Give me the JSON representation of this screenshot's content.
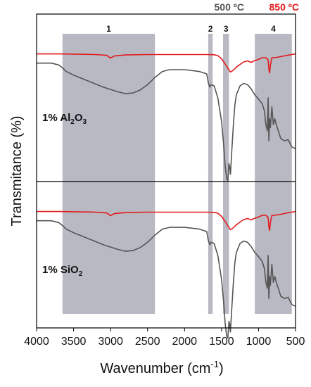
{
  "chart_data": {
    "type": "line",
    "xlabel_main": "Wavenumber (cm",
    "xlabel_sup": "-1",
    "xlabel_end": ")",
    "ylabel": "Transmitance (%)",
    "xlim": [
      4000,
      500
    ],
    "x_reversed": true,
    "xticks": [
      4000,
      3500,
      3000,
      2500,
      2000,
      1500,
      1000,
      500
    ],
    "legend": [
      {
        "label": "500 ºC",
        "color": "#555555"
      },
      {
        "label": "850 ºC",
        "color": "#e31a1c"
      }
    ],
    "legend_position": "top-right",
    "bands": [
      {
        "label": "1",
        "from": 3650,
        "to": 2400
      },
      {
        "label": "2",
        "from": 1680,
        "to": 1620
      },
      {
        "label": "3",
        "from": 1480,
        "to": 1400
      },
      {
        "label": "4",
        "from": 1050,
        "to": 550
      }
    ],
    "panels": [
      {
        "sample_main": "1% Al",
        "sample_sub1": "2",
        "sample_mid": "O",
        "sample_sub2": "3",
        "series": [
          {
            "temperature": "850 ºC",
            "color": "#e31a1c",
            "points": [
              [
                4000,
                0.02
              ],
              [
                3700,
                0.02
              ],
              [
                3500,
                0.03
              ],
              [
                3200,
                0.05
              ],
              [
                3050,
                0.09
              ],
              [
                3000,
                0.22
              ],
              [
                2950,
                0.12
              ],
              [
                2800,
                0.07
              ],
              [
                2500,
                0.05
              ],
              [
                2000,
                0.05
              ],
              [
                1700,
                0.05
              ],
              [
                1600,
                0.06
              ],
              [
                1550,
                0.1
              ],
              [
                1500,
                0.25
              ],
              [
                1450,
                0.5
              ],
              [
                1400,
                0.78
              ],
              [
                1380,
                0.88
              ],
              [
                1350,
                0.82
              ],
              [
                1300,
                0.65
              ],
              [
                1250,
                0.52
              ],
              [
                1200,
                0.4
              ],
              [
                1150,
                0.35
              ],
              [
                1100,
                0.42
              ],
              [
                1060,
                0.35
              ],
              [
                1000,
                0.28
              ],
              [
                950,
                0.2
              ],
              [
                900,
                0.2
              ],
              [
                870,
                0.3
              ],
              [
                860,
                0.75
              ],
              [
                850,
                0.92
              ],
              [
                840,
                0.55
              ],
              [
                820,
                0.2
              ],
              [
                780,
                0.2
              ],
              [
                700,
                0.15
              ],
              [
                600,
                0.08
              ],
              [
                500,
                0.02
              ]
            ]
          },
          {
            "temperature": "500 ºC",
            "color": "#555555",
            "points": [
              [
                4000,
                0.02
              ],
              [
                3800,
                0.02
              ],
              [
                3700,
                0.05
              ],
              [
                3650,
                0.1
              ],
              [
                3600,
                0.16
              ],
              [
                3500,
                0.22
              ],
              [
                3400,
                0.27
              ],
              [
                3300,
                0.32
              ],
              [
                3200,
                0.37
              ],
              [
                3100,
                0.42
              ],
              [
                3000,
                0.46
              ],
              [
                2900,
                0.5
              ],
              [
                2800,
                0.53
              ],
              [
                2700,
                0.52
              ],
              [
                2600,
                0.47
              ],
              [
                2500,
                0.38
              ],
              [
                2400,
                0.26
              ],
              [
                2300,
                0.16
              ],
              [
                2200,
                0.13
              ],
              [
                2000,
                0.13
              ],
              [
                1800,
                0.16
              ],
              [
                1700,
                0.2
              ],
              [
                1680,
                0.34
              ],
              [
                1660,
                0.42
              ],
              [
                1640,
                0.38
              ],
              [
                1600,
                0.4
              ],
              [
                1550,
                0.6
              ],
              [
                1500,
                1.0
              ],
              [
                1470,
                1.4
              ],
              [
                1450,
                1.75
              ],
              [
                1430,
                1.95
              ],
              [
                1415,
                1.98
              ],
              [
                1400,
                1.7
              ],
              [
                1390,
                1.75
              ],
              [
                1380,
                1.88
              ],
              [
                1360,
                1.45
              ],
              [
                1340,
                1.05
              ],
              [
                1320,
                0.72
              ],
              [
                1300,
                0.55
              ],
              [
                1250,
                0.4
              ],
              [
                1200,
                0.36
              ],
              [
                1150,
                0.38
              ],
              [
                1100,
                0.45
              ],
              [
                1050,
                0.55
              ],
              [
                1000,
                0.62
              ],
              [
                950,
                0.7
              ],
              [
                920,
                0.82
              ],
              [
                900,
                1.05
              ],
              [
                880,
                1.15
              ],
              [
                870,
                0.6
              ],
              [
                860,
                1.32
              ],
              [
                850,
                0.95
              ],
              [
                840,
                1.1
              ],
              [
                820,
                0.75
              ],
              [
                800,
                1.05
              ],
              [
                780,
                0.95
              ],
              [
                760,
                1.05
              ],
              [
                720,
                1.2
              ],
              [
                700,
                1.28
              ],
              [
                650,
                1.32
              ],
              [
                600,
                1.3
              ],
              [
                550,
                1.42
              ],
              [
                500,
                1.45
              ]
            ]
          }
        ]
      },
      {
        "sample_main": "1% SiO",
        "sample_sub1": "2",
        "sample_mid": "",
        "sample_sub2": "",
        "series": [
          {
            "temperature": "850 ºC",
            "color": "#e31a1c",
            "points": [
              [
                4000,
                0.02
              ],
              [
                3700,
                0.02
              ],
              [
                3500,
                0.03
              ],
              [
                3200,
                0.05
              ],
              [
                3050,
                0.09
              ],
              [
                3000,
                0.22
              ],
              [
                2950,
                0.12
              ],
              [
                2800,
                0.07
              ],
              [
                2500,
                0.05
              ],
              [
                2000,
                0.05
              ],
              [
                1700,
                0.05
              ],
              [
                1600,
                0.06
              ],
              [
                1550,
                0.1
              ],
              [
                1500,
                0.25
              ],
              [
                1450,
                0.5
              ],
              [
                1400,
                0.78
              ],
              [
                1380,
                0.88
              ],
              [
                1350,
                0.82
              ],
              [
                1300,
                0.65
              ],
              [
                1250,
                0.52
              ],
              [
                1200,
                0.4
              ],
              [
                1150,
                0.35
              ],
              [
                1100,
                0.42
              ],
              [
                1060,
                0.35
              ],
              [
                1000,
                0.28
              ],
              [
                950,
                0.2
              ],
              [
                900,
                0.2
              ],
              [
                870,
                0.3
              ],
              [
                860,
                0.75
              ],
              [
                850,
                0.92
              ],
              [
                840,
                0.55
              ],
              [
                820,
                0.2
              ],
              [
                780,
                0.2
              ],
              [
                700,
                0.15
              ],
              [
                600,
                0.08
              ],
              [
                500,
                0.02
              ]
            ]
          },
          {
            "temperature": "500 ºC",
            "color": "#555555",
            "points": [
              [
                4000,
                0.02
              ],
              [
                3800,
                0.02
              ],
              [
                3700,
                0.05
              ],
              [
                3650,
                0.1
              ],
              [
                3600,
                0.16
              ],
              [
                3500,
                0.22
              ],
              [
                3400,
                0.27
              ],
              [
                3300,
                0.32
              ],
              [
                3200,
                0.37
              ],
              [
                3100,
                0.42
              ],
              [
                3000,
                0.46
              ],
              [
                2900,
                0.5
              ],
              [
                2800,
                0.53
              ],
              [
                2700,
                0.52
              ],
              [
                2600,
                0.47
              ],
              [
                2500,
                0.38
              ],
              [
                2400,
                0.26
              ],
              [
                2300,
                0.16
              ],
              [
                2200,
                0.13
              ],
              [
                2000,
                0.13
              ],
              [
                1800,
                0.16
              ],
              [
                1700,
                0.2
              ],
              [
                1680,
                0.34
              ],
              [
                1660,
                0.42
              ],
              [
                1640,
                0.38
              ],
              [
                1600,
                0.4
              ],
              [
                1550,
                0.6
              ],
              [
                1500,
                1.0
              ],
              [
                1470,
                1.4
              ],
              [
                1450,
                1.75
              ],
              [
                1430,
                1.95
              ],
              [
                1415,
                1.98
              ],
              [
                1400,
                1.7
              ],
              [
                1390,
                1.75
              ],
              [
                1380,
                1.88
              ],
              [
                1360,
                1.45
              ],
              [
                1340,
                1.05
              ],
              [
                1320,
                0.72
              ],
              [
                1300,
                0.55
              ],
              [
                1250,
                0.4
              ],
              [
                1200,
                0.36
              ],
              [
                1150,
                0.38
              ],
              [
                1100,
                0.45
              ],
              [
                1050,
                0.55
              ],
              [
                1000,
                0.62
              ],
              [
                950,
                0.7
              ],
              [
                920,
                0.82
              ],
              [
                900,
                1.05
              ],
              [
                880,
                1.15
              ],
              [
                870,
                0.6
              ],
              [
                860,
                1.32
              ],
              [
                850,
                0.95
              ],
              [
                840,
                1.1
              ],
              [
                820,
                0.75
              ],
              [
                800,
                1.05
              ],
              [
                780,
                0.95
              ],
              [
                760,
                1.05
              ],
              [
                720,
                1.2
              ],
              [
                700,
                1.28
              ],
              [
                650,
                1.32
              ],
              [
                600,
                1.3
              ],
              [
                550,
                1.42
              ],
              [
                500,
                1.45
              ]
            ]
          }
        ]
      }
    ]
  }
}
